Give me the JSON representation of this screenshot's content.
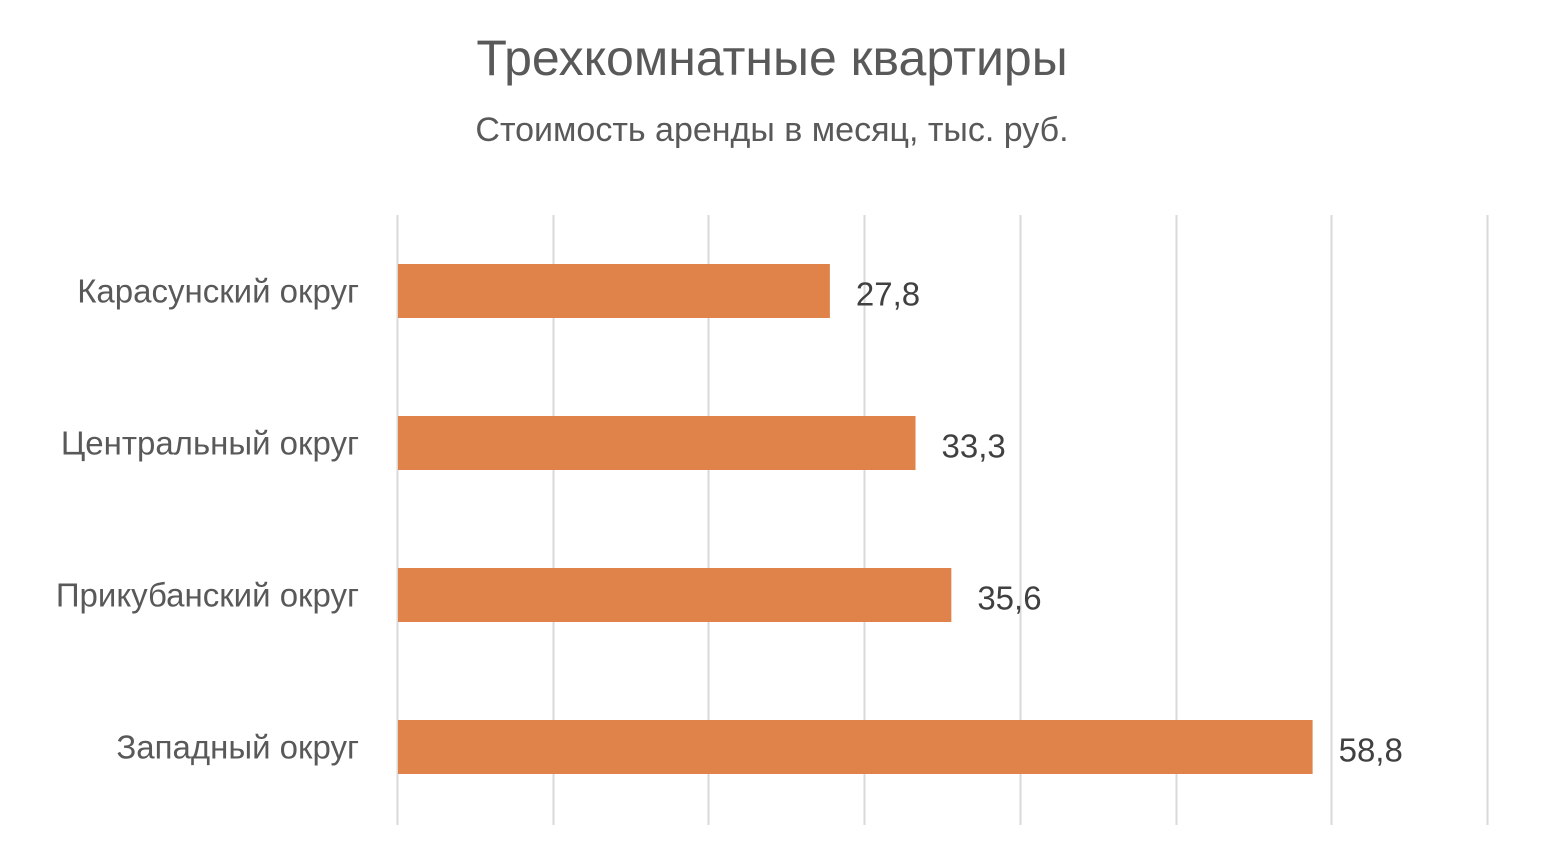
{
  "chart_data": {
    "type": "bar",
    "orientation": "horizontal",
    "title": "Трехкомнатные квартиры",
    "subtitle": "Стоимость аренды в месяц, тыс. руб.",
    "categories": [
      "Карасунский округ",
      "Центральный округ",
      "Прикубанский округ",
      "Западный округ"
    ],
    "values": [
      27.8,
      33.3,
      35.6,
      58.8
    ],
    "data_labels": [
      "27,8",
      "33,3",
      "35,6",
      "58,8"
    ],
    "xlim": [
      0,
      70
    ],
    "grid": true,
    "legend": "none",
    "bar_color": "#E0834A",
    "grid_color": "#D9D9D9",
    "text_color": "#595959",
    "label_color": "#404040"
  }
}
